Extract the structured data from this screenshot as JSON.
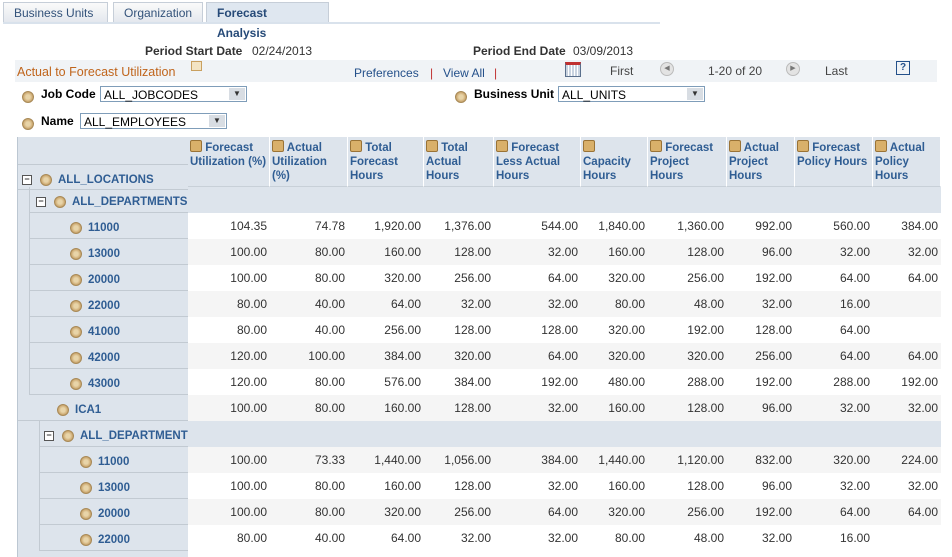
{
  "tabs": [
    "Business Units",
    "Organization",
    "Forecast Analysis"
  ],
  "period": {
    "start_label": "Period Start Date",
    "start": "02/24/2013",
    "end_label": "Period End Date",
    "end": "03/09/2013"
  },
  "toolbar": {
    "title": "Actual to Forecast Utilization",
    "preferences": "Preferences",
    "view_all": "View All",
    "first": "First",
    "range": "1-20 of 20",
    "last": "Last",
    "sep": "|"
  },
  "filters": {
    "job_code_label": "Job Code",
    "job_code": "ALL_JOBCODES",
    "business_unit_label": "Business Unit",
    "business_unit": "ALL_UNITS",
    "name_label": "Name",
    "name": "ALL_EMPLOYEES"
  },
  "columns": [
    "Forecast Utilization (%)",
    "Actual Utilization (%)",
    "Total Forecast Hours",
    "Total Actual Hours",
    "Forecast Less Actual Hours",
    "Capacity Hours",
    "Forecast Project Hours",
    "Actual Project Hours",
    "Forecast Policy Hours",
    "Actual Policy Hours"
  ],
  "tree_root": "ALL_LOCATIONS",
  "rows": [
    {
      "label": "ALL_DEPARTMENTS",
      "level": 1,
      "expand": true,
      "values": []
    },
    {
      "label": "11000",
      "level": 2,
      "values": [
        "104.35",
        "74.78",
        "1,920.00",
        "1,376.00",
        "544.00",
        "1,840.00",
        "1,360.00",
        "992.00",
        "560.00",
        "384.00"
      ]
    },
    {
      "label": "13000",
      "level": 2,
      "values": [
        "100.00",
        "80.00",
        "160.00",
        "128.00",
        "32.00",
        "160.00",
        "128.00",
        "96.00",
        "32.00",
        "32.00"
      ]
    },
    {
      "label": "20000",
      "level": 2,
      "values": [
        "100.00",
        "80.00",
        "320.00",
        "256.00",
        "64.00",
        "320.00",
        "256.00",
        "192.00",
        "64.00",
        "64.00"
      ]
    },
    {
      "label": "22000",
      "level": 2,
      "values": [
        "80.00",
        "40.00",
        "64.00",
        "32.00",
        "32.00",
        "80.00",
        "48.00",
        "32.00",
        "16.00",
        ""
      ]
    },
    {
      "label": "41000",
      "level": 2,
      "values": [
        "80.00",
        "40.00",
        "256.00",
        "128.00",
        "128.00",
        "320.00",
        "192.00",
        "128.00",
        "64.00",
        ""
      ]
    },
    {
      "label": "42000",
      "level": 2,
      "values": [
        "120.00",
        "100.00",
        "384.00",
        "320.00",
        "64.00",
        "320.00",
        "320.00",
        "256.00",
        "64.00",
        "64.00"
      ]
    },
    {
      "label": "43000",
      "level": 2,
      "values": [
        "120.00",
        "80.00",
        "576.00",
        "384.00",
        "192.00",
        "480.00",
        "288.00",
        "192.00",
        "288.00",
        "192.00"
      ]
    },
    {
      "label": "ICA1",
      "level": 1,
      "values": [
        "100.00",
        "80.00",
        "160.00",
        "128.00",
        "32.00",
        "160.00",
        "128.00",
        "96.00",
        "32.00",
        "32.00"
      ]
    },
    {
      "label": "ALL_DEPARTMENTS",
      "level": 3,
      "expand": true,
      "values": []
    },
    {
      "label": "11000",
      "level": 4,
      "values": [
        "100.00",
        "73.33",
        "1,440.00",
        "1,056.00",
        "384.00",
        "1,440.00",
        "1,120.00",
        "832.00",
        "320.00",
        "224.00"
      ]
    },
    {
      "label": "13000",
      "level": 4,
      "values": [
        "100.00",
        "80.00",
        "160.00",
        "128.00",
        "32.00",
        "160.00",
        "128.00",
        "96.00",
        "32.00",
        "32.00"
      ]
    },
    {
      "label": "20000",
      "level": 4,
      "values": [
        "100.00",
        "80.00",
        "320.00",
        "256.00",
        "64.00",
        "320.00",
        "256.00",
        "192.00",
        "64.00",
        "64.00"
      ]
    },
    {
      "label": "22000",
      "level": 4,
      "values": [
        "80.00",
        "40.00",
        "64.00",
        "32.00",
        "32.00",
        "80.00",
        "48.00",
        "32.00",
        "16.00",
        ""
      ]
    }
  ]
}
